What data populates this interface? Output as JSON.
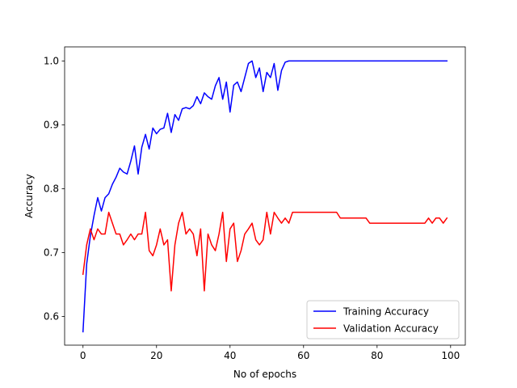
{
  "chart_data": {
    "type": "line",
    "title": "",
    "xlabel": "No of epochs",
    "ylabel": "Accuracy",
    "xlim": [
      -5,
      104
    ],
    "ylim": [
      0.555,
      1.022
    ],
    "xticks": [
      0,
      20,
      40,
      60,
      80,
      100
    ],
    "yticks": [
      0.6,
      0.7,
      0.8,
      0.9,
      1.0
    ],
    "grid": false,
    "legend_position": "lower-right",
    "series": [
      {
        "name": "Training Accuracy",
        "color": "#0000ff",
        "x": [
          0,
          1,
          2,
          3,
          4,
          5,
          6,
          7,
          8,
          9,
          10,
          11,
          12,
          13,
          14,
          15,
          16,
          17,
          18,
          19,
          20,
          21,
          22,
          23,
          24,
          25,
          26,
          27,
          28,
          29,
          30,
          31,
          32,
          33,
          34,
          35,
          36,
          37,
          38,
          39,
          40,
          41,
          42,
          43,
          44,
          45,
          46,
          47,
          48,
          49,
          50,
          51,
          52,
          53,
          54,
          55,
          56,
          57,
          58,
          59,
          60,
          61,
          62,
          63,
          64,
          65,
          66,
          67,
          68,
          69,
          70,
          71,
          72,
          73,
          74,
          75,
          76,
          77,
          78,
          79,
          80,
          81,
          82,
          83,
          84,
          85,
          86,
          87,
          88,
          89,
          90,
          91,
          92,
          93,
          94,
          95,
          96,
          97,
          98,
          99
        ],
        "values": [
          0.576,
          0.682,
          0.726,
          0.758,
          0.786,
          0.765,
          0.786,
          0.792,
          0.807,
          0.818,
          0.832,
          0.826,
          0.823,
          0.843,
          0.867,
          0.823,
          0.865,
          0.885,
          0.862,
          0.895,
          0.886,
          0.893,
          0.895,
          0.918,
          0.888,
          0.916,
          0.907,
          0.925,
          0.927,
          0.925,
          0.93,
          0.944,
          0.933,
          0.95,
          0.944,
          0.94,
          0.961,
          0.974,
          0.94,
          0.967,
          0.92,
          0.962,
          0.967,
          0.952,
          0.974,
          0.996,
          1.0,
          0.974,
          0.989,
          0.952,
          0.982,
          0.974,
          0.996,
          0.954,
          0.985,
          0.998,
          1.0,
          1.0,
          1.0,
          1.0,
          1.0,
          1.0,
          1.0,
          1.0,
          1.0,
          1.0,
          1.0,
          1.0,
          1.0,
          1.0,
          1.0,
          1.0,
          1.0,
          1.0,
          1.0,
          1.0,
          1.0,
          1.0,
          1.0,
          1.0,
          1.0,
          1.0,
          1.0,
          1.0,
          1.0,
          1.0,
          1.0,
          1.0,
          1.0,
          1.0,
          1.0,
          1.0,
          1.0,
          1.0,
          1.0,
          1.0,
          1.0,
          1.0,
          1.0,
          1.0
        ]
      },
      {
        "name": "Validation Accuracy",
        "color": "#ff0000",
        "x": [
          0,
          1,
          2,
          3,
          4,
          5,
          6,
          7,
          8,
          9,
          10,
          11,
          12,
          13,
          14,
          15,
          16,
          17,
          18,
          19,
          20,
          21,
          22,
          23,
          24,
          25,
          26,
          27,
          28,
          29,
          30,
          31,
          32,
          33,
          34,
          35,
          36,
          37,
          38,
          39,
          40,
          41,
          42,
          43,
          44,
          45,
          46,
          47,
          48,
          49,
          50,
          51,
          52,
          53,
          54,
          55,
          56,
          57,
          58,
          59,
          60,
          61,
          62,
          63,
          64,
          65,
          66,
          67,
          68,
          69,
          70,
          71,
          72,
          73,
          74,
          75,
          76,
          77,
          78,
          79,
          80,
          81,
          82,
          83,
          84,
          85,
          86,
          87,
          88,
          89,
          90,
          91,
          92,
          93,
          94,
          95,
          96,
          97,
          98,
          99
        ],
        "values": [
          0.666,
          0.712,
          0.737,
          0.72,
          0.737,
          0.729,
          0.729,
          0.763,
          0.746,
          0.729,
          0.729,
          0.712,
          0.72,
          0.729,
          0.72,
          0.729,
          0.729,
          0.763,
          0.703,
          0.695,
          0.712,
          0.737,
          0.712,
          0.72,
          0.64,
          0.712,
          0.746,
          0.763,
          0.729,
          0.737,
          0.729,
          0.695,
          0.737,
          0.64,
          0.729,
          0.712,
          0.703,
          0.729,
          0.763,
          0.686,
          0.737,
          0.746,
          0.686,
          0.703,
          0.729,
          0.737,
          0.746,
          0.72,
          0.712,
          0.72,
          0.763,
          0.729,
          0.763,
          0.754,
          0.746,
          0.754,
          0.746,
          0.763,
          0.763,
          0.763,
          0.763,
          0.763,
          0.763,
          0.763,
          0.763,
          0.763,
          0.763,
          0.763,
          0.763,
          0.763,
          0.754,
          0.754,
          0.754,
          0.754,
          0.754,
          0.754,
          0.754,
          0.754,
          0.746,
          0.746,
          0.746,
          0.746,
          0.746,
          0.746,
          0.746,
          0.746,
          0.746,
          0.746,
          0.746,
          0.746,
          0.746,
          0.746,
          0.746,
          0.746,
          0.754,
          0.746,
          0.754,
          0.754,
          0.746,
          0.754
        ]
      }
    ]
  }
}
